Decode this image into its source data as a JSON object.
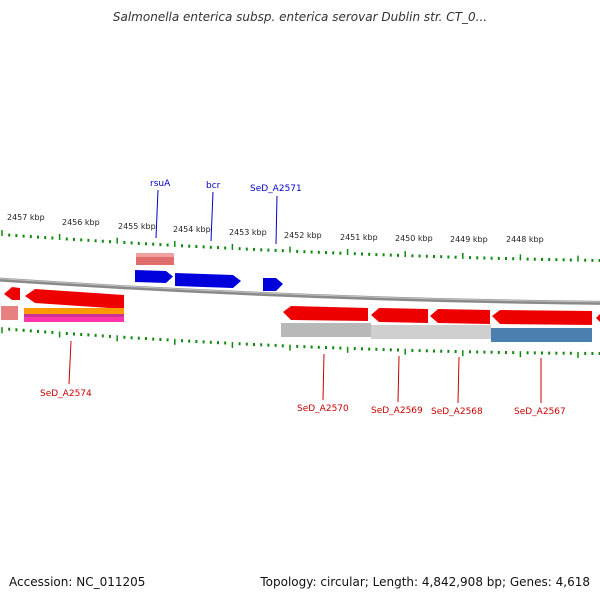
{
  "title": "Salmonella enterica subsp. enterica serovar Dublin str. CT_0...",
  "footer": {
    "accession": "Accession: NC_011205",
    "summary": "Topology: circular; Length: 4,842,908 bp; Genes: 4,618"
  },
  "kbp_labels": [
    "2457 kbp",
    "2456 kbp",
    "2455 kbp",
    "2454 kbp",
    "2453 kbp",
    "2452 kbp",
    "2451 kbp",
    "2450 kbp",
    "2449 kbp",
    "2448 kbp"
  ],
  "genes_top": [
    "rsuA",
    "bcr",
    "SeD_A2571"
  ],
  "genes_bottom": [
    "SeD_A2574",
    "SeD_A2570",
    "SeD_A2569",
    "SeD_A2568",
    "SeD_A2567"
  ],
  "colors": {
    "forward_gene": "#0000dd",
    "reverse_gene": "#ee0000",
    "tick": "#118811",
    "backbone": "#888888",
    "top_label": "#0000cc",
    "bottom_label": "#cc0000"
  }
}
